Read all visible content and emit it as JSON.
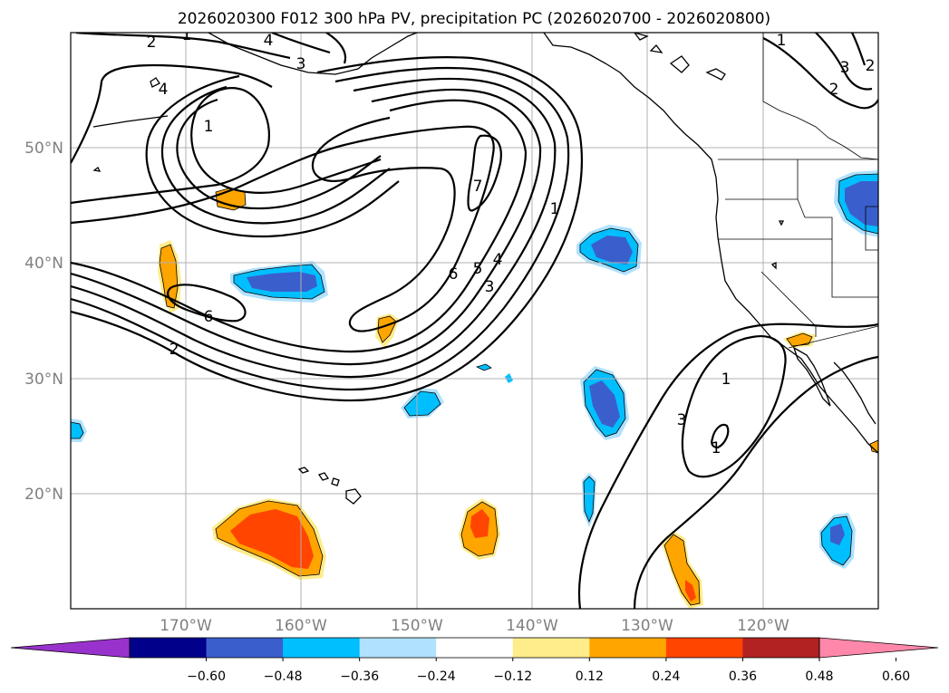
{
  "title": "2026020300 F012 300 hPa PV, precipitation PC (2026020700 - 2026020800)",
  "lat_labels": [
    "50°N",
    "40°N",
    "30°N",
    "20°N"
  ],
  "lon_labels": [
    "170°W",
    "160°W",
    "150°W",
    "140°W",
    "130°W",
    "120°W"
  ],
  "contour_labels": [
    "2",
    "1",
    "4",
    "3",
    "4",
    "1",
    "7",
    "6",
    "5",
    "4",
    "3",
    "1",
    "6",
    "2",
    "1",
    "3",
    "2",
    "2",
    "1",
    "3",
    "1"
  ],
  "colorbar": {
    "ticks": [
      "−0.60",
      "−0.48",
      "−0.36",
      "−0.24",
      "−0.12",
      "0.12",
      "0.24",
      "0.36",
      "0.48",
      "0.60"
    ],
    "colors": [
      "#9932cc",
      "#00008b",
      "#3a5fcd",
      "#00bfff",
      "#b0e2ff",
      "#ffffff",
      "#ffec8b",
      "#ffa500",
      "#ff4500",
      "#b22222",
      "#ff88aa"
    ]
  },
  "map_extent": {
    "lon_min": -180,
    "lon_max": -110,
    "lat_min": 10,
    "lat_max": 60
  }
}
